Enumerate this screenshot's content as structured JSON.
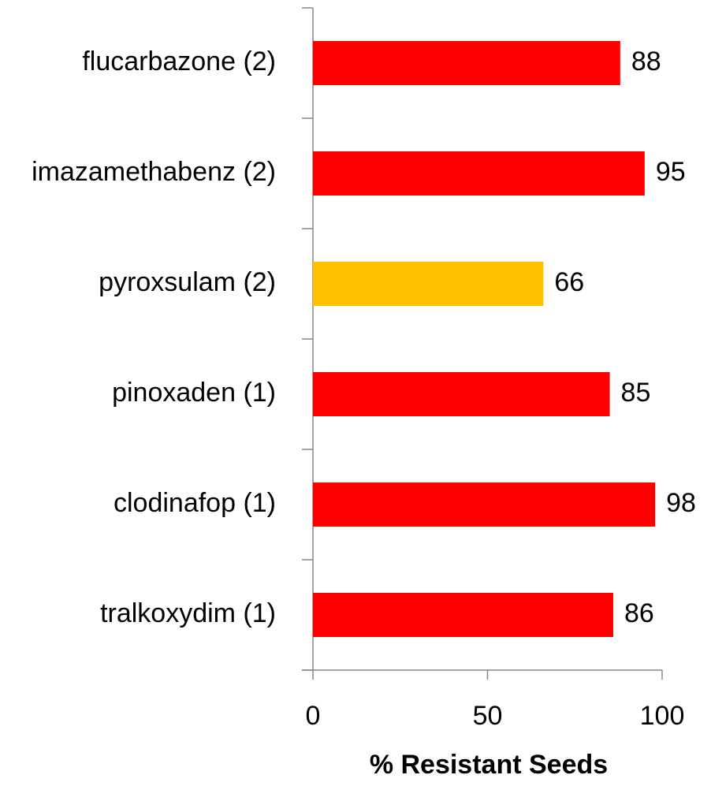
{
  "chart_data": {
    "type": "barh",
    "categories": [
      "flucarbazone (2)",
      "imazamethabenz (2)",
      "pyroxsulam (2)",
      "pinoxaden (1)",
      "clodinafop (1)",
      "tralkoxydim (1)"
    ],
    "values": [
      88,
      95,
      66,
      85,
      98,
      86
    ],
    "colors": [
      "#ff0000",
      "#ff0000",
      "#ffc000",
      "#ff0000",
      "#ff0000",
      "#ff0000"
    ],
    "xlabel": "% Resistant Seeds",
    "xlim": [
      0,
      100
    ],
    "xticks": [
      0,
      50,
      100
    ],
    "grid": false
  }
}
